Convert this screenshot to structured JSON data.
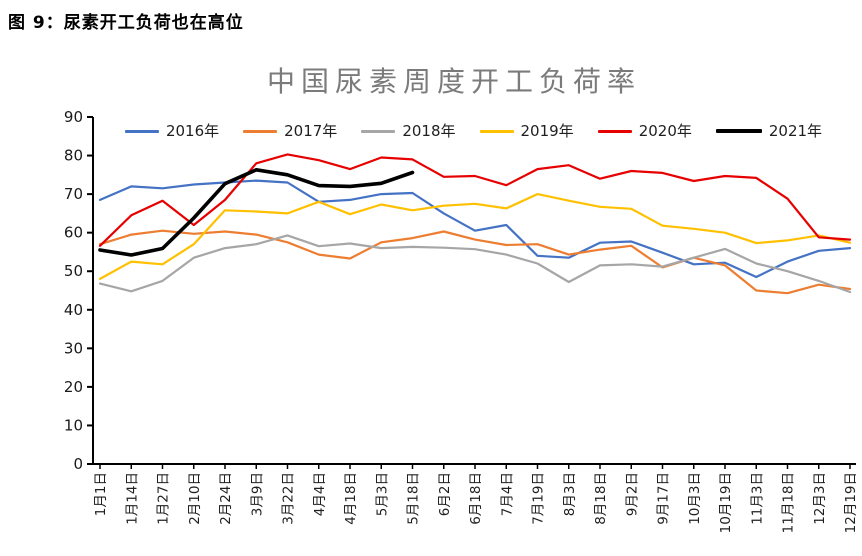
{
  "page": {
    "heading": "图 9：尿素开工负荷也在高位"
  },
  "chart_data": {
    "type": "line",
    "title": "中国尿素周度开工负荷率",
    "xlabel": "",
    "ylabel": "",
    "ylim": [
      0,
      90
    ],
    "ytick_step": 10,
    "grid": false,
    "legend_position": "top",
    "x_label_rotation": -90,
    "axis_color": "#000000",
    "categories": [
      "1月1日",
      "1月14日",
      "1月27日",
      "2月10日",
      "2月24日",
      "3月9日",
      "3月22日",
      "4月4日",
      "4月18日",
      "5月3日",
      "5月18日",
      "6月2日",
      "6月18日",
      "7月4日",
      "7月19日",
      "8月3日",
      "8月18日",
      "9月2日",
      "9月17日",
      "10月3日",
      "10月19日",
      "11月3日",
      "11月18日",
      "12月3日",
      "12月19日"
    ],
    "series": [
      {
        "name": "2016年",
        "color": "#4472C4",
        "line_width": 2.2,
        "values": [
          68.5,
          72,
          71.5,
          72.5,
          73,
          73.5,
          73,
          68,
          68.5,
          70,
          70.3,
          65,
          60.5,
          62,
          54,
          53.5,
          57.4,
          57.7,
          54.8,
          51.8,
          52.2,
          48.5,
          52.5,
          55.3,
          56
        ]
      },
      {
        "name": "2017年",
        "color": "#ED7D31",
        "line_width": 2.2,
        "values": [
          57,
          59.5,
          60.5,
          59.7,
          60.3,
          59.5,
          57.5,
          54.3,
          53.3,
          57.5,
          58.6,
          60.3,
          58.2,
          56.8,
          57,
          54.3,
          55.6,
          56.6,
          51,
          53.5,
          51.5,
          45,
          44.3,
          46.5,
          45.4
        ]
      },
      {
        "name": "2018年",
        "color": "#A6A6A6",
        "line_width": 2.2,
        "values": [
          46.8,
          44.8,
          47.5,
          53.5,
          56,
          57,
          59.3,
          56.5,
          57.2,
          56,
          56.3,
          56.1,
          55.7,
          54.3,
          52,
          47.2,
          51.5,
          51.8,
          51.2,
          53.5,
          55.8,
          52,
          50,
          47.5,
          44.6
        ]
      },
      {
        "name": "2019年",
        "color": "#FFC000",
        "line_width": 2.2,
        "values": [
          48,
          52.5,
          51.8,
          57,
          65.8,
          65.5,
          65,
          68,
          64.8,
          67.3,
          65.8,
          67,
          67.5,
          66.3,
          70,
          68.3,
          66.7,
          66.2,
          61.8,
          61,
          60,
          57.3,
          58,
          59.3,
          57.4
        ]
      },
      {
        "name": "2020年",
        "color": "#E60000",
        "line_width": 2.2,
        "values": [
          56.6,
          64.5,
          68.3,
          62,
          68.5,
          78,
          80.3,
          78.8,
          76.5,
          79.5,
          79,
          74.5,
          74.7,
          72.3,
          76.5,
          77.5,
          74,
          76,
          75.5,
          73.4,
          74.7,
          74.2,
          68.8,
          58.8,
          58.2
        ]
      },
      {
        "name": "2021年",
        "color": "#000000",
        "line_width": 3.6,
        "values": [
          55.5,
          54.2,
          55.9,
          63.8,
          72.7,
          76.3,
          75,
          72.2,
          72,
          72.8,
          75.6
        ]
      }
    ]
  }
}
